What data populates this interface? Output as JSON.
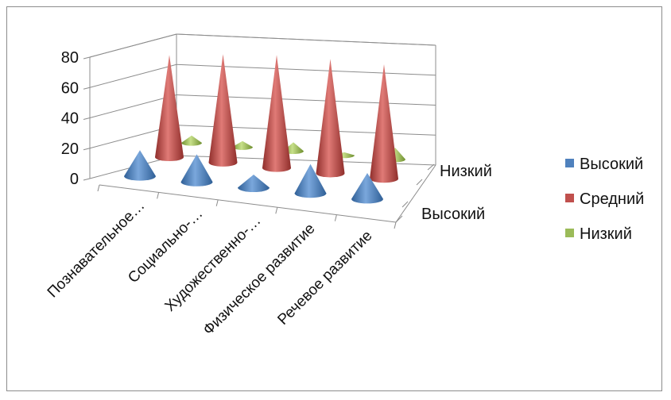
{
  "chart_data": {
    "type": "bar",
    "style": "3d-cone",
    "categories": [
      "Познавательное…",
      "Социально-…",
      "Художественно-…",
      "Физическое развитие",
      "Речевое развитие"
    ],
    "series": [
      {
        "name": "Высокий",
        "values": [
          16,
          17,
          8,
          18,
          16
        ],
        "color": "#4f81bd"
      },
      {
        "name": "Средний",
        "values": [
          66,
          70,
          73,
          74,
          74
        ],
        "color": "#c0504d"
      },
      {
        "name": "Низкий",
        "values": [
          5,
          4,
          6,
          2,
          8
        ],
        "color": "#9bbb59"
      }
    ],
    "depth_labels": [
      "Низкий",
      "Высокий"
    ],
    "y_ticks": [
      "0",
      "20",
      "40",
      "60",
      "80"
    ],
    "ylim": [
      0,
      80
    ],
    "grid": true,
    "legend_position": "right"
  }
}
